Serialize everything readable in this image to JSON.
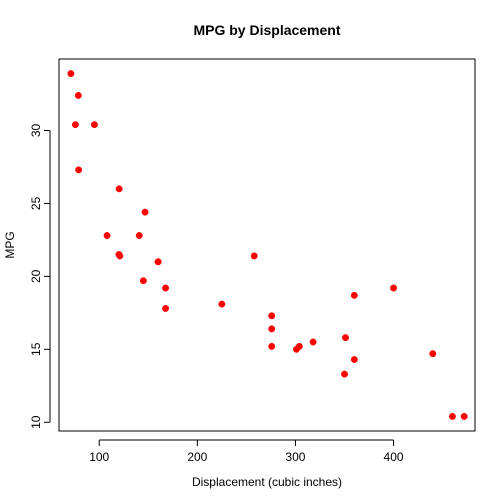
{
  "chart_data": {
    "type": "scatter",
    "title": "MPG by Displacement",
    "xlabel": "Displacement (cubic inches)",
    "ylabel": "MPG",
    "xlim": [
      59,
      483
    ],
    "ylim": [
      9.4,
      34.9
    ],
    "x_ticks": [
      100,
      200,
      300,
      400
    ],
    "y_ticks": [
      10,
      15,
      20,
      25,
      30
    ],
    "grid": false,
    "legend": "none",
    "point_color": "#ff0000",
    "series": [
      {
        "points": [
          {
            "x": 160,
            "y": 21.0
          },
          {
            "x": 160,
            "y": 21.0
          },
          {
            "x": 108,
            "y": 22.8
          },
          {
            "x": 258,
            "y": 21.4
          },
          {
            "x": 360,
            "y": 18.7
          },
          {
            "x": 225,
            "y": 18.1
          },
          {
            "x": 360,
            "y": 14.3
          },
          {
            "x": 146.7,
            "y": 24.4
          },
          {
            "x": 140.8,
            "y": 22.8
          },
          {
            "x": 167.6,
            "y": 19.2
          },
          {
            "x": 167.6,
            "y": 17.8
          },
          {
            "x": 275.8,
            "y": 16.4
          },
          {
            "x": 275.8,
            "y": 17.3
          },
          {
            "x": 275.8,
            "y": 15.2
          },
          {
            "x": 472,
            "y": 10.4
          },
          {
            "x": 460,
            "y": 10.4
          },
          {
            "x": 440,
            "y": 14.7
          },
          {
            "x": 78.7,
            "y": 32.4
          },
          {
            "x": 75.7,
            "y": 30.4
          },
          {
            "x": 71.1,
            "y": 33.9
          },
          {
            "x": 120.1,
            "y": 21.5
          },
          {
            "x": 318,
            "y": 15.5
          },
          {
            "x": 304,
            "y": 15.2
          },
          {
            "x": 350,
            "y": 13.3
          },
          {
            "x": 400,
            "y": 19.2
          },
          {
            "x": 79,
            "y": 27.3
          },
          {
            "x": 120.3,
            "y": 26.0
          },
          {
            "x": 95.1,
            "y": 30.4
          },
          {
            "x": 351,
            "y": 15.8
          },
          {
            "x": 145,
            "y": 19.7
          },
          {
            "x": 301,
            "y": 15.0
          },
          {
            "x": 121,
            "y": 21.4
          }
        ]
      }
    ]
  }
}
